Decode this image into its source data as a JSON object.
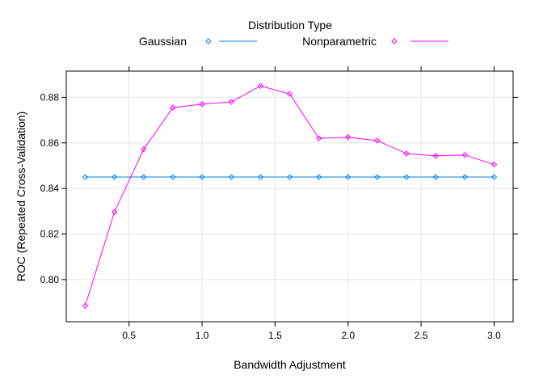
{
  "chart_data": {
    "type": "line",
    "legend": {
      "title": "Distribution Type",
      "placement": "top"
    },
    "xlabel": "Bandwidth Adjustment",
    "ylabel": "ROC (Repeated Cross-Validation)",
    "xlim": [
      0.07,
      3.13
    ],
    "ylim": [
      0.7815,
      0.8915
    ],
    "xticks": [
      0.5,
      1.0,
      1.5,
      2.0,
      2.5,
      3.0
    ],
    "xtick_labels": [
      "0.5",
      "1.0",
      "1.5",
      "2.0",
      "2.5",
      "3.0"
    ],
    "yticks": [
      0.8,
      0.82,
      0.84,
      0.86,
      0.88
    ],
    "ytick_labels": [
      "0.80",
      "0.82",
      "0.84",
      "0.86",
      "0.88"
    ],
    "grid": true,
    "x": [
      0.2,
      0.4,
      0.6,
      0.8,
      1.0,
      1.2,
      1.4,
      1.6,
      1.8,
      2.0,
      2.2,
      2.4,
      2.6,
      2.8,
      3.0
    ],
    "series": [
      {
        "name": "Gaussian",
        "color": "#0080ff",
        "values": [
          0.845,
          0.845,
          0.845,
          0.845,
          0.845,
          0.845,
          0.845,
          0.845,
          0.845,
          0.845,
          0.845,
          0.845,
          0.845,
          0.845,
          0.845
        ]
      },
      {
        "name": "Nonparametric",
        "color": "#ff00ff",
        "values": [
          0.7885,
          0.8297,
          0.8572,
          0.8755,
          0.877,
          0.878,
          0.885,
          0.8815,
          0.862,
          0.8625,
          0.861,
          0.8553,
          0.8543,
          0.8547,
          0.8505
        ]
      }
    ]
  }
}
